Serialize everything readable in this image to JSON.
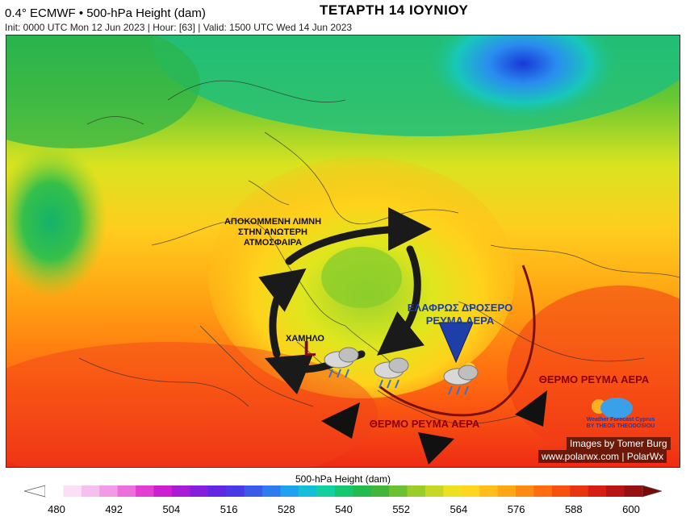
{
  "header": {
    "model_title": "0.4° ECMWF • 500-hPa Height (dam)",
    "run_info": "Init: 0000 UTC Mon 12 Jun 2023 | Hour: [63] | Valid: 1500 UTC Wed 14 Jun 2023",
    "day_title": "ΤΕΤΑΡΤΗ 14 ΙΟΥΝΙΟΥ"
  },
  "annotations": {
    "cutoff_low": [
      "ΑΠΟΚΟΜΜΕΝΗ ΛΙΜΝΗ",
      "ΣΤΗΝ ΑΝΩΤΕΡΗ",
      "ΑΤΜΟΣΦΑΙΡΑ"
    ],
    "low_label": "ΧΑΜΗΛΟ",
    "low_letter": "L",
    "cool_flow": [
      "ΕΛΑΦΡΩΣ ΔΡΟΣΕΡΟ",
      "ΡΕΥΜΑ ΑΕΡΑ"
    ],
    "warm_flow_east": "ΘΕΡΜΟ ΡΕΥΜΑ ΑΕΡΑ",
    "warm_flow_south": "ΘΕΡΜΟ ΡΕΥΜΑ ΑΕΡΑ"
  },
  "logo_text": [
    "Weather Forecast Cyprus",
    "BY THEOS THEODOSIOU"
  ],
  "credits": {
    "images_by": "Images by Tomer Burg",
    "website": "www.polarwx.com | PolarWx"
  },
  "colorbar": {
    "title": "500-hPa Height (dam)",
    "ticks": [
      "480",
      "492",
      "504",
      "516",
      "528",
      "540",
      "552",
      "564",
      "576",
      "588",
      "600"
    ],
    "min": 480,
    "max": 600
  },
  "colors": {
    "cutoff_low_green": "#8ed22a",
    "warm_red": "#e8281b",
    "cold_blue": "#2050e0",
    "front_line": "#7a1010",
    "arrow_dark": "#1a1a1a",
    "cool_arrow": "#1f3fa8"
  }
}
